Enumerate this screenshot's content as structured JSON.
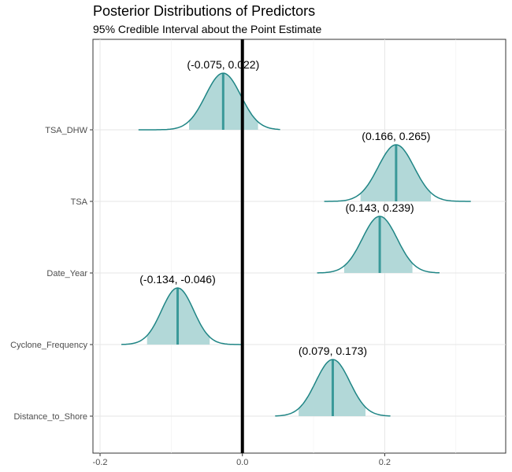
{
  "chart_data": {
    "type": "area",
    "title": "Posterior Distributions of Predictors",
    "subtitle": "95% Credible Interval about the Point Estimate",
    "xlabel": "",
    "ylabel": "",
    "xlim": [
      -0.21,
      0.37
    ],
    "x_ticks": [
      -0.2,
      0.0,
      0.2
    ],
    "x_tick_labels": [
      "-0.2",
      "0.0",
      "0.2"
    ],
    "grid": true,
    "reference_line_x": 0.0,
    "colors": {
      "fill": "#b2d8d8",
      "line": "#1f8585",
      "median": "#3a9999",
      "refline": "#000000"
    },
    "series": [
      {
        "name": "TSA_DHW",
        "median": -0.027,
        "ci": [
          -0.075,
          0.022
        ],
        "range": [
          -0.146,
          0.053
        ],
        "annotation": "(-0.075, 0.022)"
      },
      {
        "name": "TSA",
        "median": 0.216,
        "ci": [
          0.166,
          0.265
        ],
        "range": [
          0.115,
          0.321
        ],
        "annotation": "(0.166, 0.265)"
      },
      {
        "name": "Date_Year",
        "median": 0.193,
        "ci": [
          0.143,
          0.239
        ],
        "range": [
          0.105,
          0.277
        ],
        "annotation": "(0.143, 0.239)"
      },
      {
        "name": "Cyclone_Frequency",
        "median": -0.091,
        "ci": [
          -0.134,
          -0.046
        ],
        "range": [
          -0.17,
          0.0
        ],
        "annotation": "(-0.134, -0.046)"
      },
      {
        "name": "Distance_to_Shore",
        "median": 0.127,
        "ci": [
          0.079,
          0.173
        ],
        "range": [
          0.046,
          0.208
        ],
        "annotation": "(0.079, 0.173)"
      }
    ]
  }
}
